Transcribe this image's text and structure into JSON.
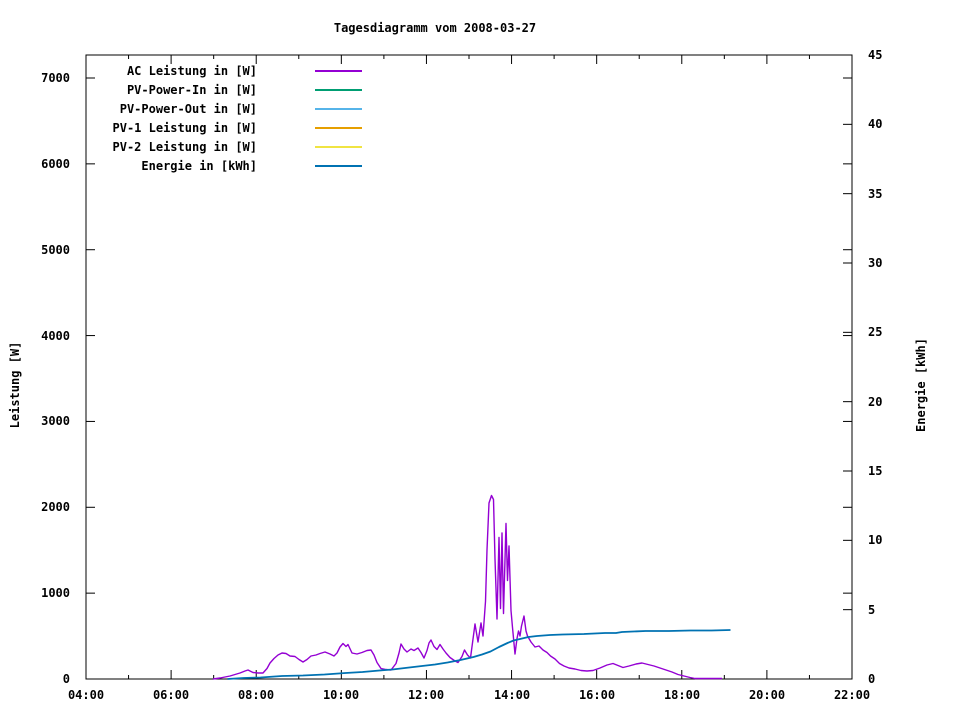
{
  "title": "Tagesdiagramm vom 2008-03-27",
  "axes": {
    "y1_label": "Leistung [W]",
    "y2_label": "Energie [kWh]",
    "y1_ticks": [
      0,
      1000,
      2000,
      3000,
      4000,
      5000,
      6000,
      7000
    ],
    "y1_range": [
      0,
      7270
    ],
    "y2_ticks": [
      0,
      5,
      10,
      15,
      20,
      25,
      30,
      35,
      40,
      45
    ],
    "y2_range": [
      0,
      45
    ],
    "x_tick_labels": [
      "04:00",
      "06:00",
      "08:00",
      "10:00",
      "12:00",
      "14:00",
      "16:00",
      "18:00",
      "20:00",
      "22:00"
    ],
    "x_major_every_hours": 2,
    "x_minor_every_hours": 1,
    "x_range_hours": [
      4,
      22
    ],
    "grid": false
  },
  "chart_data": {
    "type": "line",
    "title": "Tagesdiagramm vom 2008-03-27",
    "xlabel": "",
    "x_unit": "hour_of_day",
    "ylabel": "Leistung [W]",
    "y2label": "Energie [kWh]",
    "ylim": [
      0,
      7270
    ],
    "y2lim": [
      0,
      45
    ],
    "xlim_hours": [
      4,
      22
    ],
    "legend_position": "top-left-inside",
    "series": [
      {
        "name": "AC Leistung in [W]",
        "color": "#9400D3",
        "yaxis": "y1",
        "points": [
          [
            6.98,
            0
          ],
          [
            7.15,
            10
          ],
          [
            7.38,
            35
          ],
          [
            7.62,
            70
          ],
          [
            7.74,
            95
          ],
          [
            7.81,
            105
          ],
          [
            7.92,
            75
          ],
          [
            8.04,
            70
          ],
          [
            8.16,
            72
          ],
          [
            8.25,
            120
          ],
          [
            8.32,
            185
          ],
          [
            8.42,
            240
          ],
          [
            8.51,
            280
          ],
          [
            8.61,
            300
          ],
          [
            8.7,
            295
          ],
          [
            8.79,
            270
          ],
          [
            8.91,
            260
          ],
          [
            9.01,
            230
          ],
          [
            9.1,
            200
          ],
          [
            9.19,
            225
          ],
          [
            9.29,
            265
          ],
          [
            9.4,
            280
          ],
          [
            9.5,
            295
          ],
          [
            9.62,
            315
          ],
          [
            9.73,
            290
          ],
          [
            9.83,
            265
          ],
          [
            9.9,
            300
          ],
          [
            9.97,
            373
          ],
          [
            10.04,
            412
          ],
          [
            10.11,
            380
          ],
          [
            10.16,
            400
          ],
          [
            10.25,
            303
          ],
          [
            10.37,
            290
          ],
          [
            10.49,
            310
          ],
          [
            10.6,
            330
          ],
          [
            10.7,
            340
          ],
          [
            10.77,
            280
          ],
          [
            10.84,
            190
          ],
          [
            10.93,
            120
          ],
          [
            11.05,
            108
          ],
          [
            11.17,
            105
          ],
          [
            11.29,
            180
          ],
          [
            11.36,
            300
          ],
          [
            11.4,
            408
          ],
          [
            11.47,
            350
          ],
          [
            11.54,
            315
          ],
          [
            11.64,
            350
          ],
          [
            11.71,
            330
          ],
          [
            11.8,
            360
          ],
          [
            11.87,
            310
          ],
          [
            11.94,
            245
          ],
          [
            12.01,
            330
          ],
          [
            12.06,
            420
          ],
          [
            12.11,
            455
          ],
          [
            12.18,
            380
          ],
          [
            12.25,
            345
          ],
          [
            12.32,
            400
          ],
          [
            12.39,
            350
          ],
          [
            12.46,
            300
          ],
          [
            12.55,
            250
          ],
          [
            12.67,
            210
          ],
          [
            12.74,
            190
          ],
          [
            12.83,
            260
          ],
          [
            12.9,
            338
          ],
          [
            12.97,
            280
          ],
          [
            13.04,
            245
          ],
          [
            13.14,
            640
          ],
          [
            13.21,
            430
          ],
          [
            13.28,
            650
          ],
          [
            13.33,
            500
          ],
          [
            13.39,
            900
          ],
          [
            13.42,
            1500
          ],
          [
            13.47,
            2050
          ],
          [
            13.53,
            2135
          ],
          [
            13.58,
            2090
          ],
          [
            13.61,
            1400
          ],
          [
            13.66,
            700
          ],
          [
            13.7,
            1650
          ],
          [
            13.74,
            820
          ],
          [
            13.78,
            1700
          ],
          [
            13.81,
            760
          ],
          [
            13.87,
            1810
          ],
          [
            13.91,
            1150
          ],
          [
            13.94,
            1550
          ],
          [
            13.99,
            800
          ],
          [
            14.02,
            600
          ],
          [
            14.08,
            290
          ],
          [
            14.13,
            470
          ],
          [
            14.16,
            560
          ],
          [
            14.2,
            500
          ],
          [
            14.23,
            620
          ],
          [
            14.29,
            735
          ],
          [
            14.34,
            560
          ],
          [
            14.38,
            500
          ],
          [
            14.46,
            430
          ],
          [
            14.55,
            370
          ],
          [
            14.64,
            385
          ],
          [
            14.74,
            340
          ],
          [
            14.83,
            310
          ],
          [
            14.92,
            270
          ],
          [
            15.02,
            235
          ],
          [
            15.13,
            180
          ],
          [
            15.23,
            150
          ],
          [
            15.35,
            130
          ],
          [
            15.49,
            115
          ],
          [
            15.63,
            100
          ],
          [
            15.77,
            92
          ],
          [
            15.91,
            100
          ],
          [
            16.08,
            130
          ],
          [
            16.24,
            165
          ],
          [
            16.38,
            180
          ],
          [
            16.5,
            160
          ],
          [
            16.62,
            135
          ],
          [
            16.76,
            150
          ],
          [
            16.92,
            175
          ],
          [
            17.06,
            185
          ],
          [
            17.21,
            170
          ],
          [
            17.35,
            150
          ],
          [
            17.49,
            130
          ],
          [
            17.63,
            105
          ],
          [
            17.77,
            80
          ],
          [
            17.91,
            55
          ],
          [
            18.05,
            35
          ],
          [
            18.19,
            15
          ],
          [
            18.31,
            6
          ],
          [
            18.54,
            6
          ],
          [
            18.78,
            6
          ],
          [
            18.94,
            4
          ]
        ]
      },
      {
        "name": "PV-Power-In in [W]",
        "color": "#009E73",
        "yaxis": "y1",
        "points": []
      },
      {
        "name": "PV-Power-Out in [W]",
        "color": "#56B4E9",
        "yaxis": "y1",
        "points": []
      },
      {
        "name": "PV-1 Leistung in [W]",
        "color": "#E69F00",
        "yaxis": "y1",
        "points": []
      },
      {
        "name": "PV-2 Leistung in [W]",
        "color": "#F0E442",
        "yaxis": "y1",
        "points": []
      },
      {
        "name": "Energie in [kWh]",
        "color": "#0072B2",
        "yaxis": "y2",
        "points": [
          [
            7.33,
            0
          ],
          [
            7.7,
            0.06
          ],
          [
            8.1,
            0.12
          ],
          [
            8.6,
            0.2
          ],
          [
            9.1,
            0.27
          ],
          [
            9.6,
            0.34
          ],
          [
            10.1,
            0.42
          ],
          [
            10.5,
            0.5
          ],
          [
            10.9,
            0.6
          ],
          [
            11.2,
            0.68
          ],
          [
            11.5,
            0.78
          ],
          [
            11.9,
            0.92
          ],
          [
            12.2,
            1.05
          ],
          [
            12.5,
            1.2
          ],
          [
            12.8,
            1.38
          ],
          [
            13.1,
            1.6
          ],
          [
            13.3,
            1.78
          ],
          [
            13.5,
            2.0
          ],
          [
            13.7,
            2.3
          ],
          [
            13.9,
            2.6
          ],
          [
            14.05,
            2.78
          ],
          [
            14.2,
            2.9
          ],
          [
            14.4,
            3.02
          ],
          [
            14.6,
            3.1
          ],
          [
            14.9,
            3.17
          ],
          [
            15.2,
            3.2
          ],
          [
            15.7,
            3.26
          ],
          [
            16.2,
            3.3
          ],
          [
            16.45,
            3.33
          ],
          [
            16.6,
            3.38
          ],
          [
            17.15,
            3.45
          ],
          [
            17.7,
            3.46
          ],
          [
            18.2,
            3.48
          ],
          [
            18.7,
            3.5
          ],
          [
            19.15,
            3.52
          ]
        ]
      }
    ]
  },
  "colors": {
    "background": "#ffffff",
    "axis": "#000000",
    "text": "#000000"
  }
}
